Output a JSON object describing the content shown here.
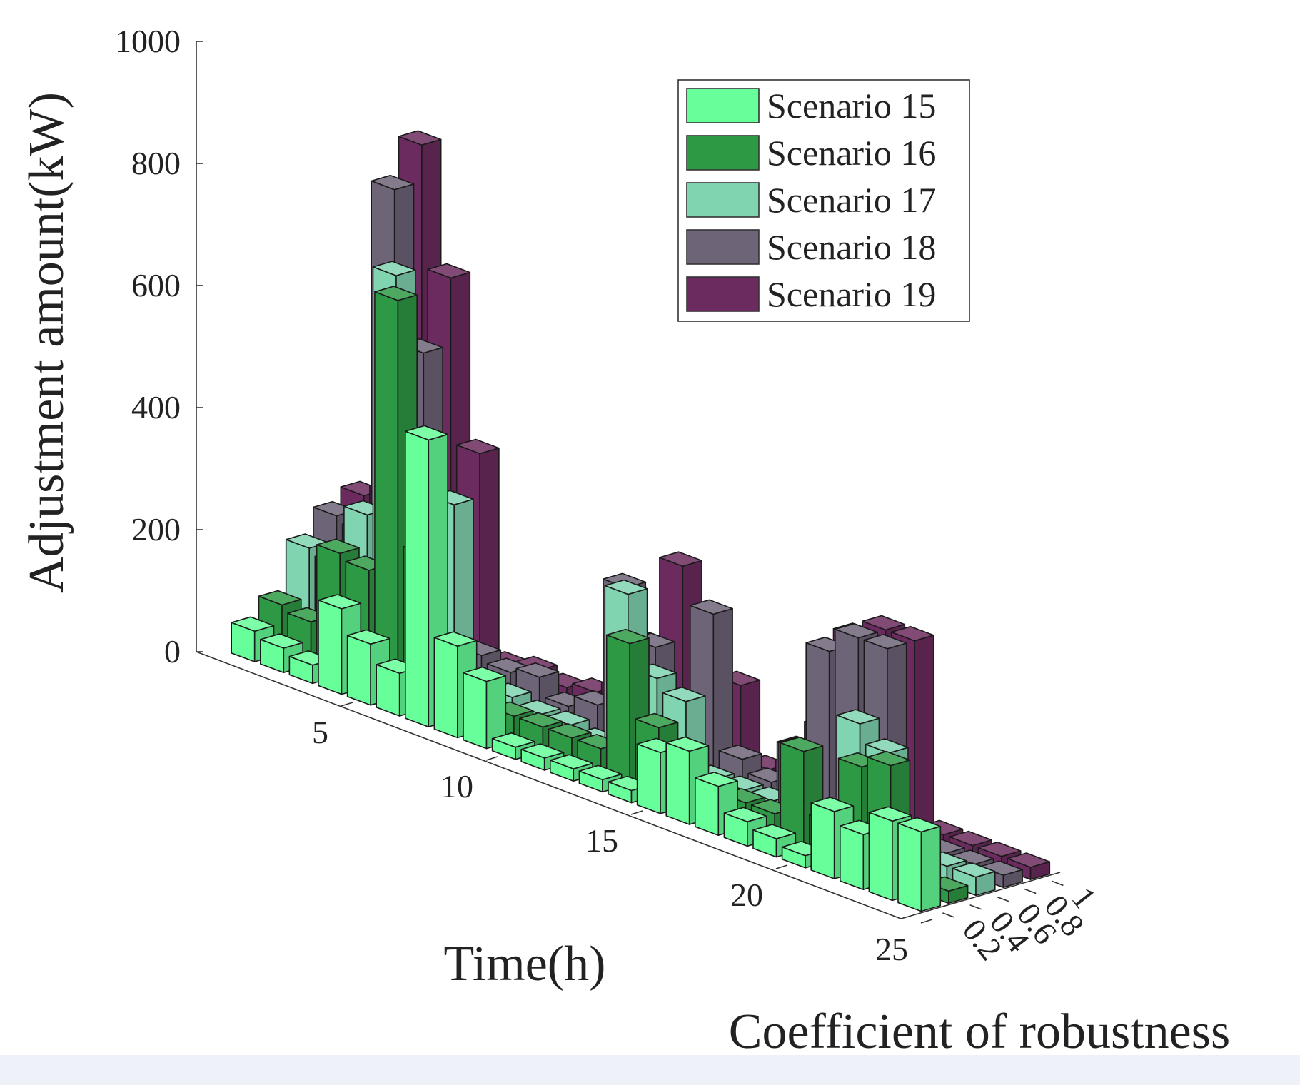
{
  "chart_data": {
    "type": "bar3d",
    "title": "",
    "xlabel": "Time(h)",
    "ylabel": "Coefficient of robustness",
    "zlabel": "Adjustment amount(kW)",
    "zlim": [
      0,
      1000
    ],
    "z_ticks": [
      "0",
      "200",
      "400",
      "600",
      "800",
      "1000"
    ],
    "x_ticks": [
      "5",
      "10",
      "15",
      "20",
      "25"
    ],
    "y_ticks": [
      "0.2",
      "0.4",
      "0.6",
      "0.8",
      "1"
    ],
    "x": [
      1,
      2,
      3,
      4,
      5,
      6,
      7,
      8,
      9,
      10,
      11,
      12,
      13,
      14,
      15,
      16,
      17,
      18,
      19,
      20,
      21,
      22,
      23,
      24
    ],
    "legend_position": "top-right",
    "series": [
      {
        "name": "Scenario 15",
        "robustness": 0.2,
        "color": "#66ff99",
        "values": [
          50,
          40,
          30,
          140,
          100,
          70,
          470,
          150,
          110,
          20,
          20,
          20,
          20,
          20,
          100,
          120,
          80,
          40,
          30,
          20,
          110,
          90,
          130,
          130
        ]
      },
      {
        "name": "Scenario 16",
        "robustness": 0.4,
        "color": "#2e9944",
        "values": [
          80,
          70,
          200,
          190,
          650,
          250,
          100,
          40,
          40,
          40,
          40,
          40,
          230,
          110,
          40,
          40,
          40,
          40,
          160,
          60,
          170,
          190,
          20,
          20
        ]
      },
      {
        "name": "Scenario 17",
        "robustness": 0.6,
        "color": "#80d4b0",
        "values": [
          160,
          150,
          250,
          660,
          360,
          320,
          30,
          40,
          30,
          30,
          20,
          280,
          160,
          140,
          30,
          30,
          30,
          130,
          40,
          210,
          180,
          30,
          30,
          30
        ]
      },
      {
        "name": "Scenario 18",
        "robustness": 0.8,
        "color": "#6e6478",
        "values": [
          200,
          190,
          770,
          520,
          210,
          60,
          50,
          60,
          30,
          50,
          260,
          180,
          40,
          270,
          50,
          30,
          100,
          280,
          320,
          320,
          20,
          20,
          20,
          20
        ]
      },
      {
        "name": "Scenario 19",
        "robustness": 1.0,
        "color": "#6b2b5e",
        "values": [
          220,
          240,
          830,
          630,
          360,
          30,
          40,
          30,
          40,
          60,
          150,
          300,
          30,
          140,
          20,
          40,
          120,
          290,
          320,
          320,
          20,
          20,
          20,
          20
        ]
      }
    ]
  }
}
